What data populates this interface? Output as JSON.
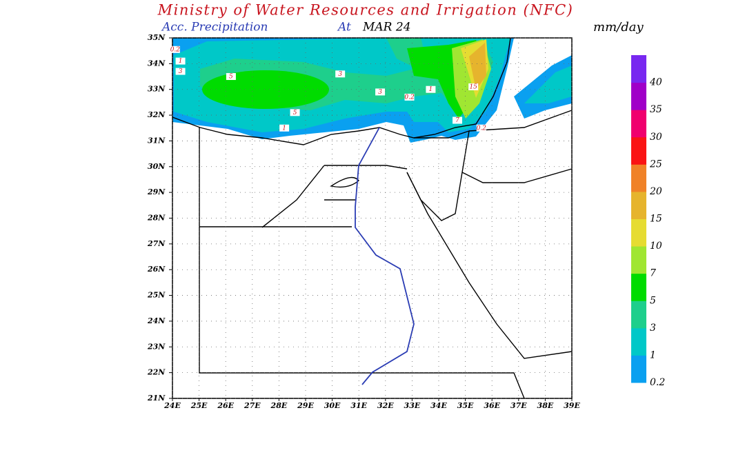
{
  "header": {
    "title": "Ministry of Water Resources and Irrigation (NFC)",
    "product": "Acc. Precipitation",
    "at": "At",
    "date": "MAR 24",
    "unit": "mm/day"
  },
  "map": {
    "lonlim": [
      24,
      39
    ],
    "latlim": [
      21,
      35
    ],
    "grid": true,
    "lat_ticks": [
      {
        "value": 21,
        "label": "21N"
      },
      {
        "value": 22,
        "label": "22N"
      },
      {
        "value": 23,
        "label": "23N"
      },
      {
        "value": 24,
        "label": "24N"
      },
      {
        "value": 25,
        "label": "25N"
      },
      {
        "value": 26,
        "label": "26N"
      },
      {
        "value": 27,
        "label": "27N"
      },
      {
        "value": 28,
        "label": "28N"
      },
      {
        "value": 29,
        "label": "29N"
      },
      {
        "value": 30,
        "label": "30N"
      },
      {
        "value": 31,
        "label": "31N"
      },
      {
        "value": 32,
        "label": "32N"
      },
      {
        "value": 33,
        "label": "33N"
      },
      {
        "value": 34,
        "label": "34N"
      },
      {
        "value": 35,
        "label": "35N"
      }
    ],
    "lon_ticks": [
      {
        "value": 24,
        "label": "24E"
      },
      {
        "value": 25,
        "label": "25E"
      },
      {
        "value": 26,
        "label": "26E"
      },
      {
        "value": 27,
        "label": "27E"
      },
      {
        "value": 28,
        "label": "28E"
      },
      {
        "value": 29,
        "label": "29E"
      },
      {
        "value": 30,
        "label": "30E"
      },
      {
        "value": 31,
        "label": "31E"
      },
      {
        "value": 32,
        "label": "32E"
      },
      {
        "value": 33,
        "label": "33E"
      },
      {
        "value": 34,
        "label": "34E"
      },
      {
        "value": 35,
        "label": "35E"
      },
      {
        "value": 36,
        "label": "36E"
      },
      {
        "value": 37,
        "label": "37E"
      },
      {
        "value": 38,
        "label": "38E"
      },
      {
        "value": 39,
        "label": "39E"
      }
    ],
    "contour_labels": [
      {
        "text": "0.2",
        "lon": 24.1,
        "lat": 34.55
      },
      {
        "text": "1",
        "lon": 24.3,
        "lat": 34.1
      },
      {
        "text": "3",
        "lon": 24.3,
        "lat": 33.7
      },
      {
        "text": "5",
        "lon": 26.2,
        "lat": 33.5
      },
      {
        "text": "3",
        "lon": 30.3,
        "lat": 33.6
      },
      {
        "text": "1",
        "lon": 33.7,
        "lat": 33.0
      },
      {
        "text": "3",
        "lon": 31.8,
        "lat": 32.9
      },
      {
        "text": "0.2",
        "lon": 32.9,
        "lat": 32.7
      },
      {
        "text": "5",
        "lon": 28.6,
        "lat": 32.1
      },
      {
        "text": "1",
        "lon": 28.2,
        "lat": 31.5
      },
      {
        "text": "15",
        "lon": 35.3,
        "lat": 33.1
      },
      {
        "text": "7",
        "lon": 34.7,
        "lat": 31.8
      },
      {
        "text": "0.2",
        "lon": 35.6,
        "lat": 31.5
      }
    ]
  },
  "colorbar": {
    "levels": [
      0.2,
      1,
      3,
      5,
      7,
      10,
      15,
      20,
      25,
      30,
      35,
      40
    ],
    "colors": [
      "#0aa0f0",
      "#00c8c8",
      "#1ecf8c",
      "#00dc00",
      "#a0e632",
      "#e6dc32",
      "#e6b42d",
      "#f08228",
      "#fa1414",
      "#f0006e",
      "#a000c8",
      "#7828f0"
    ]
  }
}
